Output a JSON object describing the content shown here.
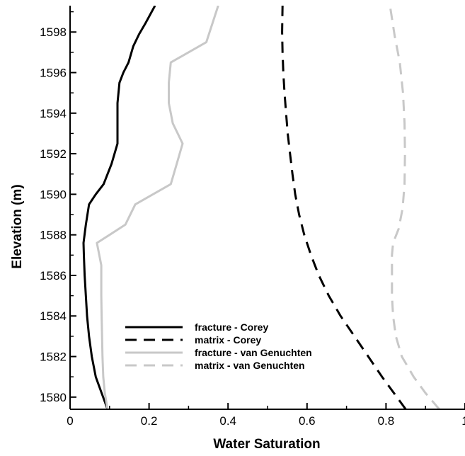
{
  "chart_data": {
    "type": "line",
    "xlabel": "Water Saturation",
    "ylabel": "Elevation (m)",
    "xlim": [
      0,
      1
    ],
    "ylim": [
      1579.4,
      1599.3
    ],
    "x_ticks": [
      0,
      0.2,
      0.4,
      0.6,
      0.8,
      1
    ],
    "x_tick_labels": [
      "0",
      "0.2",
      "0.4",
      "0.6",
      "0.8",
      "1"
    ],
    "y_ticks": [
      1580,
      1582,
      1584,
      1586,
      1588,
      1590,
      1592,
      1594,
      1596,
      1598
    ],
    "y_tick_labels": [
      "1580",
      "1582",
      "1584",
      "1586",
      "1588",
      "1590",
      "1592",
      "1594",
      "1596",
      "1598"
    ],
    "grid": false,
    "legend_position": "bottom-left",
    "series": [
      {
        "name": "fracture - Corey",
        "color": "#000000",
        "dash": "solid",
        "points": [
          [
            0.095,
            1579.4
          ],
          [
            0.08,
            1580.2
          ],
          [
            0.065,
            1581.0
          ],
          [
            0.055,
            1582.0
          ],
          [
            0.048,
            1583.0
          ],
          [
            0.043,
            1584.0
          ],
          [
            0.04,
            1585.0
          ],
          [
            0.037,
            1586.0
          ],
          [
            0.035,
            1587.0
          ],
          [
            0.034,
            1587.6
          ],
          [
            0.04,
            1588.5
          ],
          [
            0.048,
            1589.5
          ],
          [
            0.065,
            1590.0
          ],
          [
            0.085,
            1590.5
          ],
          [
            0.105,
            1591.5
          ],
          [
            0.12,
            1592.5
          ],
          [
            0.12,
            1593.5
          ],
          [
            0.12,
            1594.5
          ],
          [
            0.125,
            1595.5
          ],
          [
            0.135,
            1596.0
          ],
          [
            0.148,
            1596.5
          ],
          [
            0.16,
            1597.3
          ],
          [
            0.175,
            1597.9
          ],
          [
            0.19,
            1598.4
          ],
          [
            0.215,
            1599.3
          ]
        ]
      },
      {
        "name": "matrix - Corey",
        "color": "#000000",
        "dash": "dashed",
        "points": [
          [
            0.85,
            1579.4
          ],
          [
            0.82,
            1580.2
          ],
          [
            0.79,
            1581.0
          ],
          [
            0.755,
            1582.0
          ],
          [
            0.72,
            1583.0
          ],
          [
            0.685,
            1584.0
          ],
          [
            0.655,
            1585.0
          ],
          [
            0.63,
            1586.0
          ],
          [
            0.61,
            1587.0
          ],
          [
            0.593,
            1588.0
          ],
          [
            0.58,
            1589.0
          ],
          [
            0.57,
            1590.0
          ],
          [
            0.563,
            1591.0
          ],
          [
            0.557,
            1592.0
          ],
          [
            0.551,
            1593.0
          ],
          [
            0.547,
            1594.0
          ],
          [
            0.543,
            1595.0
          ],
          [
            0.54,
            1596.0
          ],
          [
            0.538,
            1597.0
          ],
          [
            0.537,
            1598.0
          ],
          [
            0.538,
            1599.3
          ]
        ]
      },
      {
        "name": "fracture - van Genuchten",
        "color": "#c8c8c8",
        "dash": "solid",
        "points": [
          [
            0.095,
            1579.4
          ],
          [
            0.088,
            1580.2
          ],
          [
            0.084,
            1581.0
          ],
          [
            0.082,
            1582.0
          ],
          [
            0.081,
            1583.0
          ],
          [
            0.08,
            1584.0
          ],
          [
            0.079,
            1585.0
          ],
          [
            0.079,
            1586.5
          ],
          [
            0.068,
            1587.6
          ],
          [
            0.1,
            1588.0
          ],
          [
            0.14,
            1588.5
          ],
          [
            0.165,
            1589.5
          ],
          [
            0.255,
            1590.5
          ],
          [
            0.27,
            1591.5
          ],
          [
            0.285,
            1592.5
          ],
          [
            0.26,
            1593.5
          ],
          [
            0.25,
            1594.5
          ],
          [
            0.25,
            1595.5
          ],
          [
            0.255,
            1596.5
          ],
          [
            0.345,
            1597.5
          ],
          [
            0.375,
            1599.3
          ]
        ]
      },
      {
        "name": "matrix - van Genuchten",
        "color": "#c8c8c8",
        "dash": "dashed",
        "points": [
          [
            0.935,
            1579.4
          ],
          [
            0.9,
            1580.2
          ],
          [
            0.87,
            1581.0
          ],
          [
            0.84,
            1582.0
          ],
          [
            0.825,
            1583.0
          ],
          [
            0.818,
            1584.0
          ],
          [
            0.815,
            1585.0
          ],
          [
            0.815,
            1586.0
          ],
          [
            0.815,
            1587.0
          ],
          [
            0.818,
            1587.6
          ],
          [
            0.832,
            1588.3
          ],
          [
            0.842,
            1589.3
          ],
          [
            0.847,
            1590.5
          ],
          [
            0.848,
            1592.0
          ],
          [
            0.847,
            1593.5
          ],
          [
            0.843,
            1595.0
          ],
          [
            0.835,
            1596.5
          ],
          [
            0.822,
            1597.8
          ],
          [
            0.81,
            1599.3
          ]
        ]
      }
    ]
  }
}
